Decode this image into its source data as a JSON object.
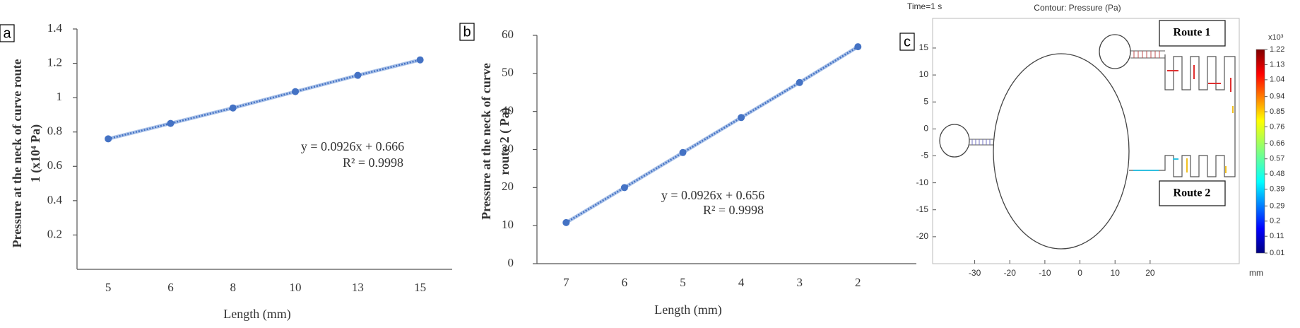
{
  "chart_data": [
    {
      "type": "line",
      "panel_label": "a",
      "categories": [
        "5",
        "6",
        "8",
        "10",
        "13",
        "15"
      ],
      "values": [
        0.76,
        0.85,
        0.94,
        1.035,
        1.13,
        1.22
      ],
      "color": "#4472c4",
      "ylim": [
        0,
        1.4
      ],
      "yticks": [
        0.2,
        0.4,
        0.6,
        0.8,
        1,
        1.2,
        1.4
      ],
      "x_label": "Length (mm)",
      "y_label": [
        "Pressure at the neck of curve route",
        "1 (x10⁴ Pa)"
      ],
      "annotations": [
        "y = 0.0926x + 0.666",
        "R² = 0.9998"
      ]
    },
    {
      "type": "line",
      "panel_label": "b",
      "categories": [
        "7",
        "6",
        "5",
        "4",
        "3",
        "2"
      ],
      "values": [
        10.8,
        20,
        29.2,
        38.4,
        47.6,
        57
      ],
      "color": "#4472c4",
      "ylim": [
        0,
        60
      ],
      "yticks": [
        0,
        10,
        20,
        30,
        40,
        50,
        60
      ],
      "x_label": "Length (mm)",
      "y_label": [
        "Pressure at the neck of curve",
        "route 2 ( Pa)"
      ],
      "annotations": [
        "y = 0.0926x + 0.656",
        "R² = 0.9998"
      ]
    },
    {
      "type": "contour",
      "panel_label": "c",
      "title": "Contour: Pressure (Pa)",
      "time_label": "Time=1 s",
      "xlim": [
        -42,
        45.4
      ],
      "ylim": [
        -25,
        20.5
      ],
      "xticks": [
        -30,
        -20,
        -10,
        0,
        10,
        20
      ],
      "yticks": [
        15,
        10,
        5,
        0,
        -5,
        -10,
        -15,
        -20
      ],
      "x_unit": "mm",
      "colorbar": {
        "lim": [
          0.01,
          1.22
        ],
        "multiplier": "x10³",
        "ticks": [
          1.22,
          1.13,
          1.04,
          0.94,
          0.85,
          0.76,
          0.66,
          0.57,
          0.48,
          0.39,
          0.29,
          0.2,
          0.11,
          0.01
        ]
      },
      "annotations": [
        "Route 1",
        "Route 2"
      ]
    }
  ]
}
